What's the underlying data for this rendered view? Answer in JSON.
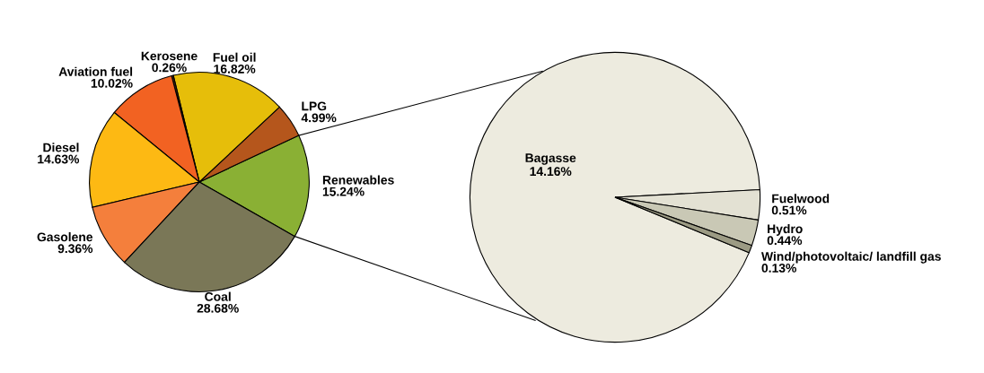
{
  "chart_data": [
    {
      "type": "pie",
      "categories": [
        "Renewables",
        "LPG",
        "Fuel oil",
        "Kerosene",
        "Aviation fuel",
        "Diesel",
        "Gasolene",
        "Coal"
      ],
      "values": [
        15.24,
        4.99,
        16.82,
        0.26,
        10.02,
        14.63,
        9.36,
        28.68
      ],
      "value_labels": [
        "15.24%",
        "4.99%",
        "16.82%",
        "0.26%",
        "10.02%",
        "14.63%",
        "9.36%",
        "28.68%"
      ],
      "colors": [
        "#8ab034",
        "#b5561c",
        "#e6be0a",
        "#4a2a10",
        "#f26222",
        "#fdb913",
        "#f47f3c",
        "#7a7757"
      ]
    },
    {
      "type": "pie",
      "categories": [
        "Bagasse",
        "Fuelwood",
        "Hydro",
        "Wind/photovoltaic/ landfill gas"
      ],
      "values": [
        14.16,
        0.51,
        0.44,
        0.13
      ],
      "value_labels": [
        "14.16%",
        "0.51%",
        "0.44%",
        "0.13%"
      ],
      "colors": [
        "#edebdf",
        "#e3e1d3",
        "#c9c8b5",
        "#9c9b84"
      ]
    }
  ]
}
